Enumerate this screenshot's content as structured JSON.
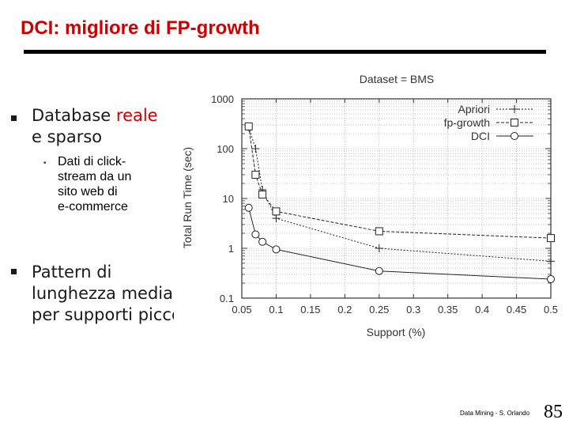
{
  "slide": {
    "title": "DCI: migliore di FP-growth",
    "bullets": [
      {
        "text_a": "Database ",
        "text_b": "reale",
        "text_c": "e  sparso"
      },
      {
        "text": "Pattern di lunghezza media per supporti piccoli"
      }
    ],
    "sub_bullet": [
      "Dati di click-",
      "stream da un",
      "sito web di",
      "e-commerce"
    ],
    "bullet2_lines": [
      "Pattern di",
      "lunghezza media",
      "per supporti picco"
    ],
    "footer": "Data Mining - S. Orlando",
    "page_number": "85"
  },
  "chart_data": {
    "type": "line",
    "title": "Dataset = BMS",
    "xlabel": "Support (%)",
    "ylabel": "Total Run Time (sec)",
    "xlim": [
      0.05,
      0.5
    ],
    "ylim": [
      0.1,
      1000
    ],
    "yscale": "log",
    "x_ticks": [
      0.05,
      0.1,
      0.15,
      0.2,
      0.25,
      0.3,
      0.35,
      0.4,
      0.45,
      0.5
    ],
    "x_tick_labels": [
      "0.05",
      "0.1",
      "0.15",
      "0.2",
      "0.25",
      "0.3",
      "0.35",
      "0.4",
      "0.45",
      "0.5"
    ],
    "y_ticks": [
      0.1,
      1,
      10,
      100,
      1000
    ],
    "y_tick_labels": [
      "0.1",
      "1",
      "10",
      "100",
      "1000"
    ],
    "grid": true,
    "legend_position": "top-right",
    "series": [
      {
        "name": "Apriori",
        "marker": "plus",
        "dash": "2,2",
        "x": [
          0.06,
          0.07,
          0.08,
          0.1,
          0.25,
          0.5
        ],
        "y": [
          270,
          100,
          15,
          4,
          1,
          0.55
        ]
      },
      {
        "name": "fp-growth",
        "marker": "square",
        "dash": "4,2",
        "x": [
          0.06,
          0.07,
          0.08,
          0.1,
          0.25,
          0.5
        ],
        "y": [
          280,
          30,
          12,
          5.5,
          2.2,
          1.6
        ]
      },
      {
        "name": "DCI",
        "marker": "circle",
        "dash": "",
        "x": [
          0.06,
          0.07,
          0.08,
          0.1,
          0.25,
          0.5
        ],
        "y": [
          6.5,
          1.9,
          1.35,
          0.95,
          0.35,
          0.24
        ]
      }
    ]
  }
}
